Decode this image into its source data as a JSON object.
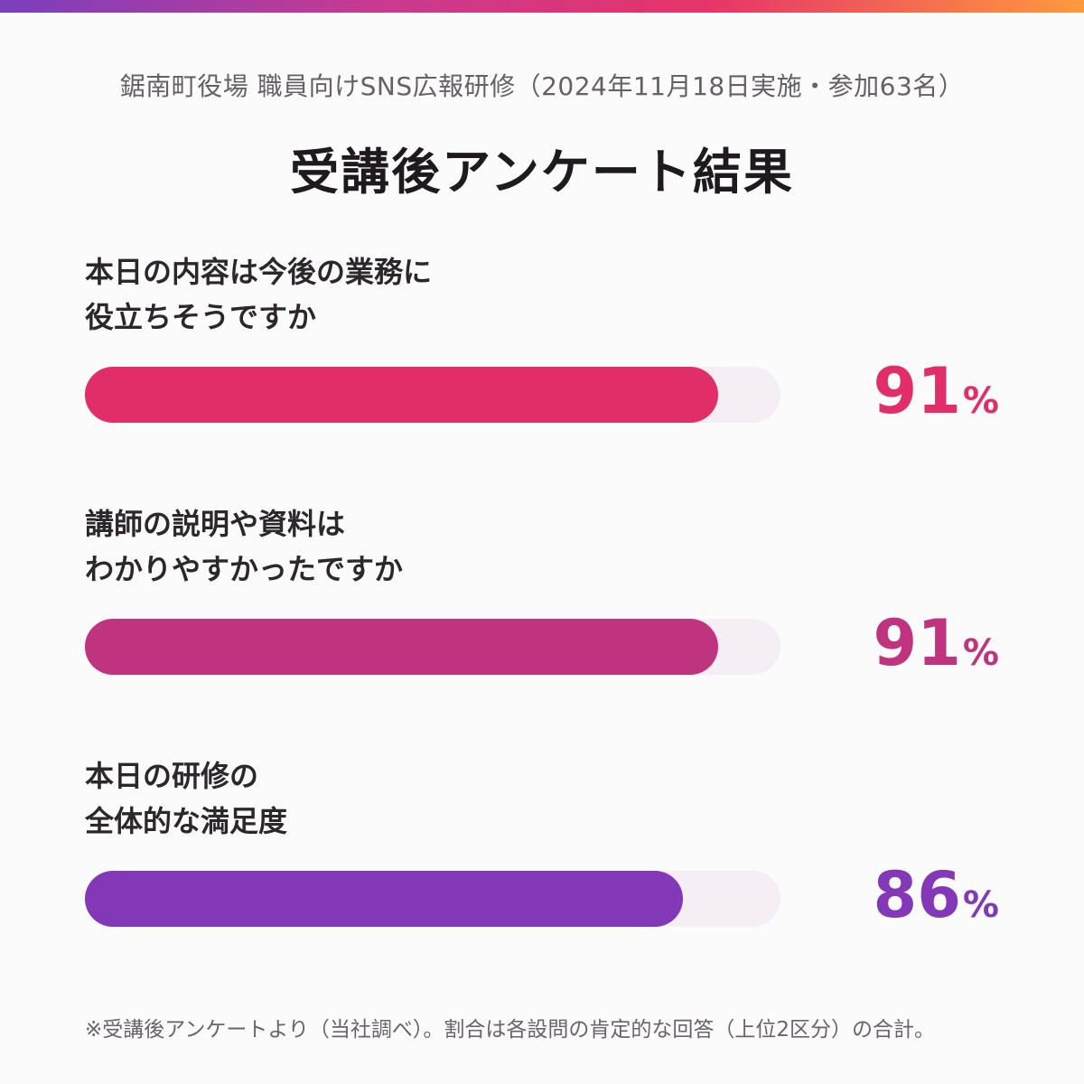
{
  "header": {
    "subtitle": "鋸南町役場 職員向けSNS広報研修（2024年11月18日実施・参加63名）",
    "title": "受講後アンケート結果"
  },
  "questions": [
    {
      "lines": [
        "本日の内容は今後の業務に",
        "役立ちそうですか"
      ],
      "value": 91,
      "value_label": "91",
      "unit": "%",
      "color": "#e22e68"
    },
    {
      "lines": [
        "講師の説明や資料は",
        "わかりやすかったですか"
      ],
      "value": 91,
      "value_label": "91",
      "unit": "%",
      "color": "#c0347f"
    },
    {
      "lines": [
        "本日の研修の",
        "全体的な満足度"
      ],
      "value": 86,
      "value_label": "86",
      "unit": "%",
      "color": "#8338b8"
    }
  ],
  "footnote": "※受講後アンケートより（当社調べ）。割合は各設問の肯定的な回答（上位2区分）の合計。",
  "colors": {
    "track": "#f5eef4",
    "accent_gradient": [
      "#7b3fbf",
      "#c93a8f",
      "#e6336a",
      "#ff9a3c"
    ]
  },
  "chart_data": {
    "type": "bar",
    "orientation": "horizontal",
    "categories": [
      "本日の内容は今後の業務に役立ちそうですか",
      "講師の説明や資料はわかりやすかったですか",
      "本日の研修の全体的な満足度"
    ],
    "values": [
      91,
      91,
      86
    ],
    "unit": "%",
    "xlim": [
      0,
      100
    ],
    "title": "受講後アンケート結果",
    "subtitle": "鋸南町役場 職員向けSNS広報研修（2024年11月18日実施・参加63名）",
    "grid": false,
    "legend": "none"
  }
}
